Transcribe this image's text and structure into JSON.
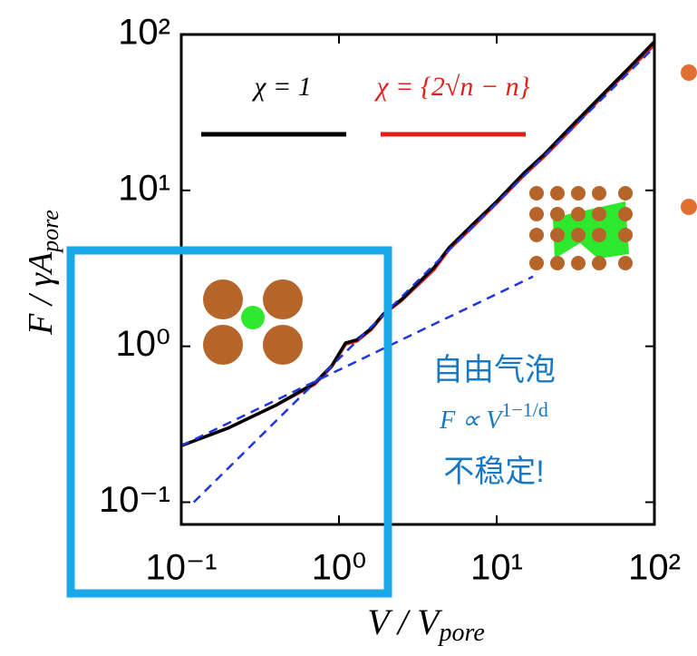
{
  "chart_data": {
    "type": "line",
    "xlabel": "V / V",
    "xlabel_sub": "pore",
    "ylabel": "F / γA",
    "ylabel_sub": "pore",
    "xscale": "log",
    "yscale": "log",
    "xlim": [
      0.1,
      100
    ],
    "ylim": [
      0.072,
      100
    ],
    "xticks": [
      {
        "value": 0.1,
        "label": "10⁻¹"
      },
      {
        "value": 1,
        "label": "10⁰"
      },
      {
        "value": 10,
        "label": "10¹"
      },
      {
        "value": 100,
        "label": "10²"
      }
    ],
    "yticks": [
      {
        "value": 0.1,
        "label": "10⁻¹"
      },
      {
        "value": 1,
        "label": "10⁰"
      },
      {
        "value": 10,
        "label": "10¹"
      },
      {
        "value": 100,
        "label": "10²"
      }
    ],
    "series": [
      {
        "name": "χ = 1",
        "color": "#000000",
        "dash": false,
        "x": [
          0.1,
          0.2,
          0.4,
          0.7,
          0.9,
          1.1,
          1.3,
          1.6,
          1.9,
          2.1,
          2.5,
          3,
          4,
          5,
          7,
          10,
          15,
          20,
          30,
          50,
          70,
          100
        ],
        "values": [
          0.23,
          0.3,
          0.42,
          0.58,
          0.75,
          1.05,
          1.1,
          1.3,
          1.6,
          1.75,
          2.0,
          2.4,
          3.2,
          4.3,
          6,
          8.5,
          13,
          17,
          26,
          44,
          62,
          90
        ]
      },
      {
        "name": "χ = {2√n − n}",
        "color": "#e0211b",
        "dash": false,
        "x": [
          0.1,
          0.2,
          0.4,
          0.7,
          0.9,
          1.1,
          1.3,
          1.6,
          1.9,
          2.1,
          2.5,
          3,
          4,
          5,
          7,
          10,
          15,
          20,
          30,
          50,
          70,
          100
        ],
        "values": [
          0.23,
          0.3,
          0.42,
          0.57,
          0.74,
          1.03,
          1.08,
          1.28,
          1.58,
          1.72,
          1.97,
          2.35,
          3.1,
          4.2,
          5.8,
          8.3,
          12.6,
          16.5,
          25,
          43,
          60,
          86
        ]
      },
      {
        "color": "#1f35e0",
        "dash": true,
        "x": [
          0.12,
          100
        ],
        "values": [
          0.1,
          83
        ]
      },
      {
        "color": "#1f35e0",
        "dash": true,
        "x": [
          0.1,
          17
        ],
        "values": [
          0.23,
          2.8
        ]
      }
    ],
    "annotations": [
      "自由气泡",
      {
        "text": "F ∝ V",
        "sup": "1−1/d"
      },
      "不稳定!"
    ]
  }
}
